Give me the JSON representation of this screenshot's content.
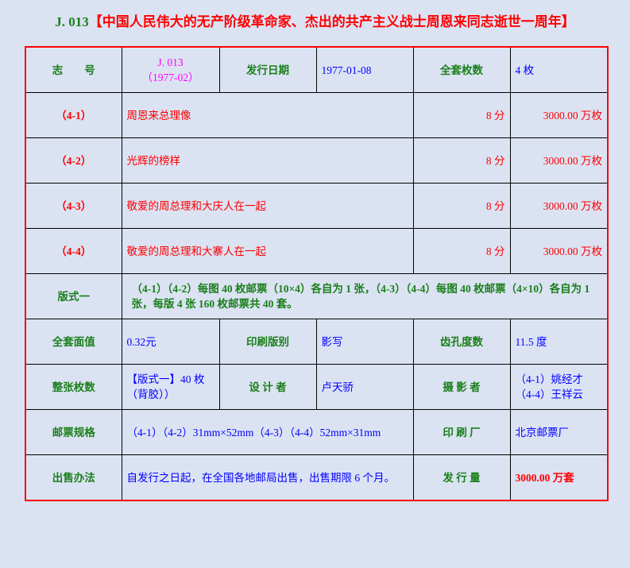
{
  "title": {
    "code": "J. 013",
    "name": "【中国人民伟大的无产阶级革命家、杰出的共产主义战士周恩来同志逝世一周年】"
  },
  "header_row": {
    "label_id": "志　　号",
    "id_line1": "J. 013",
    "id_line2": "（1977-02）",
    "label_date": "发行日期",
    "date": "1977-01-08",
    "label_count": "全套枚数",
    "count": "4 枚"
  },
  "stamps": [
    {
      "no": "（4-1）",
      "name": "周恩来总理像",
      "face": "8 分",
      "qty": "3000.00 万枚"
    },
    {
      "no": "（4-2）",
      "name": "光辉的榜样",
      "face": "8 分",
      "qty": "3000.00 万枚"
    },
    {
      "no": "（4-3）",
      "name": "敬爱的周总理和大庆人在一起",
      "face": "8 分",
      "qty": "3000.00 万枚"
    },
    {
      "no": "（4-4）",
      "name": "敬爱的周总理和大寨人在一起",
      "face": "8 分",
      "qty": "3000.00 万枚"
    }
  ],
  "format": {
    "label": "版式一",
    "text": "（4-1）（4-2）每图 40 枚邮票（10×4）各自为 1 张，（4-3）（4-4）每图 40 枚邮票（4×10）各自为 1 张，每版 4 张 160 枚邮票共 40 套。"
  },
  "row_value": {
    "label_face": "全套面值",
    "face": "0.32元",
    "label_print": "印刷版别",
    "print": "影写",
    "label_perf": "齿孔度数",
    "perf": "11.5 度"
  },
  "row_sheet": {
    "label_sheet": "整张枚数",
    "sheet_line1": "【版式一】40 枚",
    "sheet_line2": "（背胶））",
    "label_designer": "设 计 者",
    "designer": "卢天骄",
    "label_photo": "摄 影 者",
    "photo_line1": "（4-1）姚经才",
    "photo_line2": "（4-4）王祥云"
  },
  "row_size": {
    "label_size": "邮票规格",
    "size": "（4-1）（4-2）31mm×52mm（4-3）（4-4）52mm×31mm",
    "label_printer": "印 刷 厂",
    "printer": "北京邮票厂"
  },
  "row_sale": {
    "label_sale": "出售办法",
    "sale": "自发行之日起，在全国各地邮局出售，出售期限 6 个月。",
    "label_issue": "发 行 量",
    "issue": "3000.00 万套"
  },
  "colors": {
    "background": "#dbe3f3",
    "label": "#1a7f1a",
    "value": "#0000ff",
    "accent": "#ff0000",
    "id": "#ff00ff"
  }
}
